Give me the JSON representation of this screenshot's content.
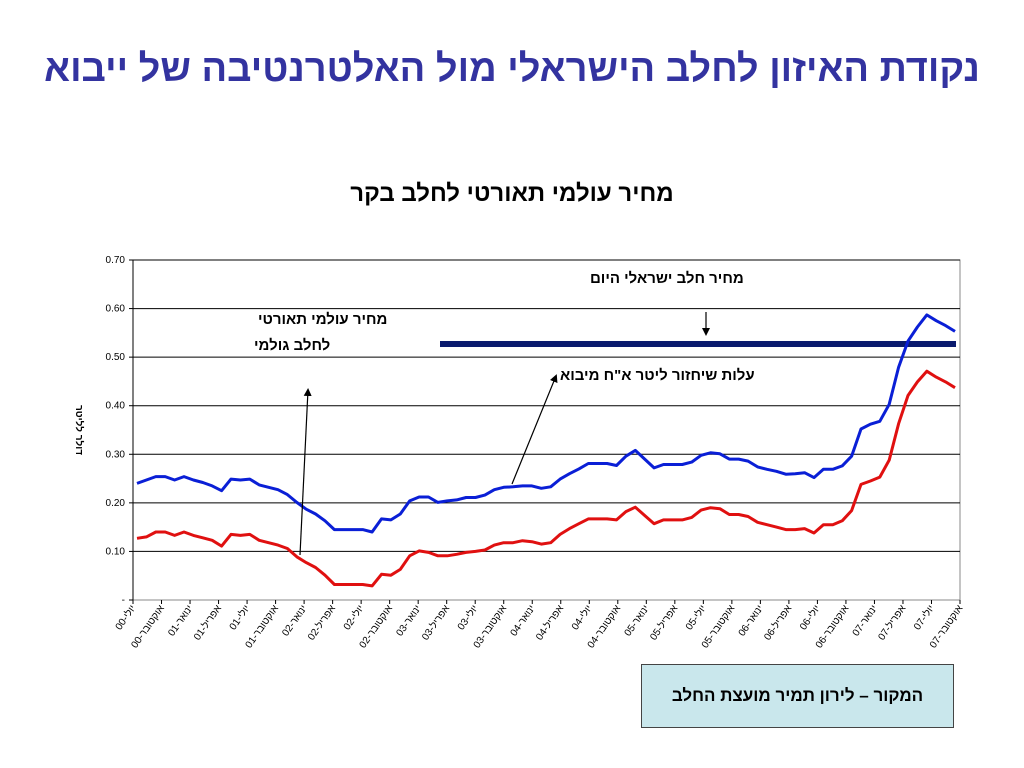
{
  "slide": {
    "title": "נקודת האיזון לחלב הישראלי מול האלטרנטיבה של ייבוא",
    "chart_title": "מחיר עולמי תאורטי לחלב בקר",
    "source": "המקור – לירון תמיר מועצת החלב"
  },
  "annotations": {
    "israeli_price": "מחיר חלב ישראלי  היום",
    "world_price_line1": "מחיר עולמי תאורטי",
    "world_price_line2": "לחלב גולמי",
    "import_cost": "עלות  שיחזור ליטר א\"ח מיבוא"
  },
  "colors": {
    "title": "#3333a0",
    "blue_series": "#0a1fd6",
    "red_series": "#e01010",
    "israeli_price_line": "#0a1a6e",
    "source_box": "#c9e7ec"
  },
  "chart_data": {
    "type": "line",
    "ylabel": "דולר לליטר",
    "ylim": [
      0,
      0.7
    ],
    "yticks": [
      "-",
      "0.10",
      "0.20",
      "0.30",
      "0.40",
      "0.50",
      "0.60",
      "0.70"
    ],
    "grid": true,
    "xtick_labels": [
      "יולי-00",
      "אוקטובר-00",
      "ינואר-01",
      "אפריל-01",
      "יולי-01",
      "אוקטובר-01",
      "ינואר-02",
      "אפריל-02",
      "יולי-02",
      "אוקטובר-02",
      "ינואר-03",
      "אפריל-03",
      "יולי-03",
      "אוקטובר-03",
      "ינואר-04",
      "אפריל-04",
      "יולי-04",
      "אוקטובר-04",
      "ינואר-05",
      "אפריל-05",
      "יולי-05",
      "אוקטובר-05",
      "ינואר-06",
      "אפריל-06",
      "יולי-06",
      "אוקטובר-06",
      "ינואר-07",
      "אפריל-07",
      "יולי-07",
      "אוקטובר-07"
    ],
    "israeli_price_level": 0.527,
    "series": [
      {
        "color": "#0a1fd6",
        "values": [
          0.24,
          0.247,
          0.254,
          0.254,
          0.247,
          0.254,
          0.247,
          0.242,
          0.235,
          0.225,
          0.249,
          0.247,
          0.249,
          0.237,
          0.232,
          0.227,
          0.217,
          0.201,
          0.187,
          0.177,
          0.163,
          0.145,
          0.145,
          0.145,
          0.145,
          0.14,
          0.167,
          0.165,
          0.177,
          0.204,
          0.212,
          0.212,
          0.201,
          0.204,
          0.206,
          0.211,
          0.211,
          0.216,
          0.227,
          0.232,
          0.233,
          0.235,
          0.235,
          0.23,
          0.233,
          0.249,
          0.26,
          0.27,
          0.281,
          0.281,
          0.281,
          0.277,
          0.296,
          0.308,
          0.29,
          0.272,
          0.279,
          0.279,
          0.279,
          0.284,
          0.298,
          0.303,
          0.301,
          0.29,
          0.29,
          0.286,
          0.274,
          0.269,
          0.265,
          0.259,
          0.26,
          0.262,
          0.252,
          0.269,
          0.269,
          0.276,
          0.296,
          0.352,
          0.362,
          0.368,
          0.403,
          0.479,
          0.533,
          0.562,
          0.587,
          0.575,
          0.565,
          0.553
        ]
      },
      {
        "color": "#e01010",
        "values": [
          0.127,
          0.13,
          0.14,
          0.14,
          0.133,
          0.14,
          0.133,
          0.128,
          0.123,
          0.111,
          0.135,
          0.133,
          0.135,
          0.123,
          0.118,
          0.113,
          0.106,
          0.089,
          0.077,
          0.067,
          0.051,
          0.032,
          0.032,
          0.032,
          0.032,
          0.029,
          0.053,
          0.051,
          0.063,
          0.091,
          0.101,
          0.098,
          0.091,
          0.091,
          0.094,
          0.098,
          0.1,
          0.103,
          0.113,
          0.118,
          0.118,
          0.122,
          0.12,
          0.115,
          0.118,
          0.135,
          0.147,
          0.157,
          0.167,
          0.167,
          0.167,
          0.165,
          0.182,
          0.191,
          0.174,
          0.157,
          0.165,
          0.165,
          0.165,
          0.17,
          0.185,
          0.19,
          0.188,
          0.176,
          0.176,
          0.172,
          0.16,
          0.155,
          0.15,
          0.145,
          0.145,
          0.147,
          0.138,
          0.155,
          0.155,
          0.163,
          0.184,
          0.238,
          0.245,
          0.253,
          0.288,
          0.363,
          0.421,
          0.449,
          0.471,
          0.459,
          0.449,
          0.437
        ]
      }
    ]
  }
}
